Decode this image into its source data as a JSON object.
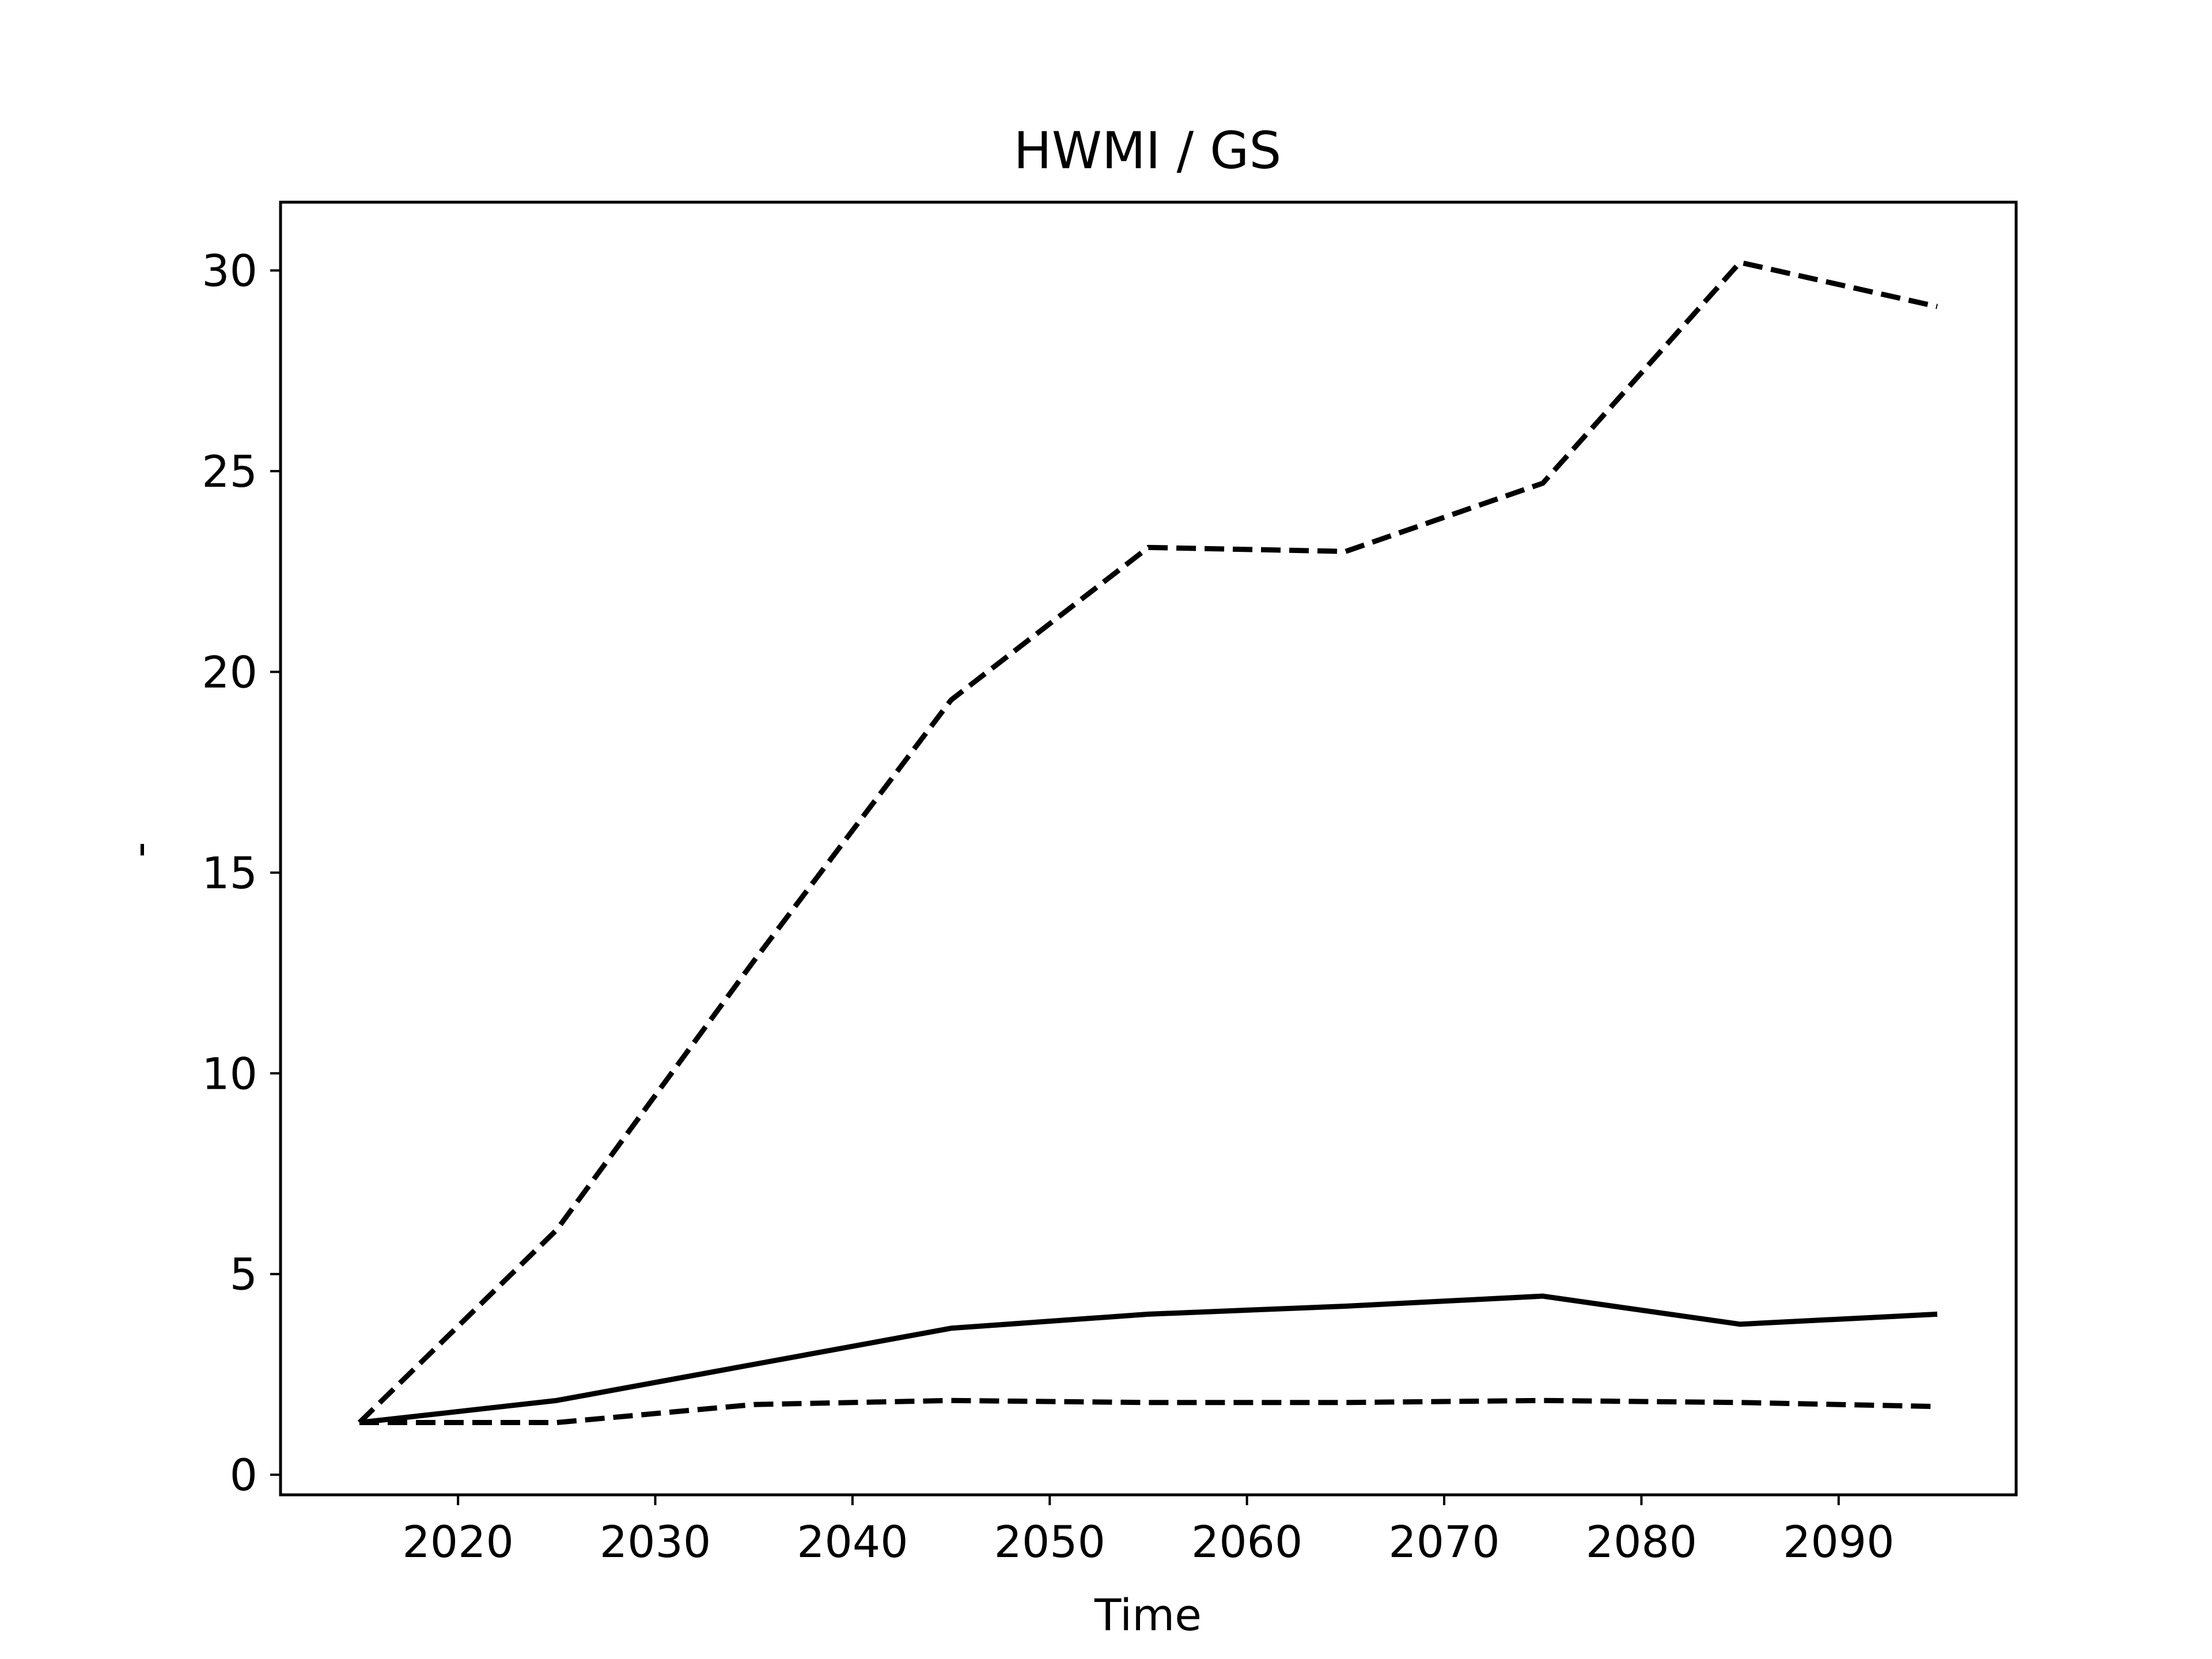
{
  "chart_data": {
    "type": "line",
    "title": "HWMI / GS",
    "xlabel": "Time",
    "ylabel": "-",
    "xlim": [
      2011,
      2099
    ],
    "ylim": [
      -0.5,
      31.7
    ],
    "xticks": [
      2020,
      2030,
      2040,
      2050,
      2060,
      2070,
      2080,
      2090
    ],
    "yticks": [
      0,
      5,
      10,
      15,
      20,
      25,
      30
    ],
    "grid": false,
    "line_color": "#000000",
    "x": [
      2015,
      2025,
      2035,
      2045,
      2055,
      2065,
      2075,
      2085,
      2095
    ],
    "series": [
      {
        "style": "dashed",
        "values": [
          1.3,
          6.1,
          12.8,
          19.3,
          23.1,
          23.0,
          24.7,
          30.2,
          29.1
        ]
      },
      {
        "style": "solid",
        "values": [
          1.3,
          1.85,
          2.75,
          3.65,
          4.0,
          4.2,
          4.45,
          3.75,
          4.0
        ]
      },
      {
        "style": "dashed",
        "values": [
          1.3,
          1.3,
          1.75,
          1.85,
          1.8,
          1.8,
          1.85,
          1.8,
          1.7
        ]
      }
    ]
  }
}
